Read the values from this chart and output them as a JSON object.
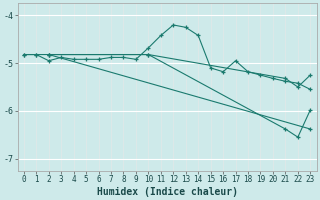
{
  "xlabel": "Humidex (Indice chaleur)",
  "background_color": "#ceeaea",
  "line_color": "#1a7a6e",
  "xlim": [
    -0.5,
    23.5
  ],
  "ylim": [
    -7.25,
    -3.75
  ],
  "yticks": [
    -7,
    -6,
    -5,
    -4
  ],
  "xticks": [
    0,
    1,
    2,
    3,
    4,
    5,
    6,
    7,
    8,
    9,
    10,
    11,
    12,
    13,
    14,
    15,
    16,
    17,
    18,
    19,
    20,
    21,
    22,
    23
  ],
  "series1_x": [
    0,
    1,
    2,
    3,
    4,
    5,
    6,
    7,
    8,
    9,
    10,
    11,
    12,
    13,
    14,
    15,
    16,
    17,
    18,
    19,
    20,
    21,
    22,
    23
  ],
  "series1_y": [
    -4.82,
    -4.82,
    -4.95,
    -4.88,
    -4.92,
    -4.92,
    -4.92,
    -4.88,
    -4.88,
    -4.92,
    -4.68,
    -4.42,
    -4.2,
    -4.25,
    -4.42,
    -5.1,
    -5.18,
    -4.95,
    -5.18,
    -5.25,
    -5.32,
    -5.38,
    -5.42,
    -5.55
  ],
  "series2_x": [
    0,
    1,
    2,
    10,
    21,
    22,
    23
  ],
  "series2_y": [
    -4.82,
    -4.82,
    -4.82,
    -4.82,
    -5.32,
    -5.5,
    -5.25
  ],
  "series3_x": [
    2,
    23
  ],
  "series3_y": [
    -4.82,
    -6.38
  ],
  "series4_x": [
    2,
    10,
    21,
    22,
    23
  ],
  "series4_y": [
    -4.82,
    -4.82,
    -6.38,
    -6.55,
    -5.98
  ],
  "grid_color_h": "#ffffff",
  "grid_color_v": "#dde8e8",
  "xlabel_fontsize": 7,
  "tick_fontsize": 5.5
}
